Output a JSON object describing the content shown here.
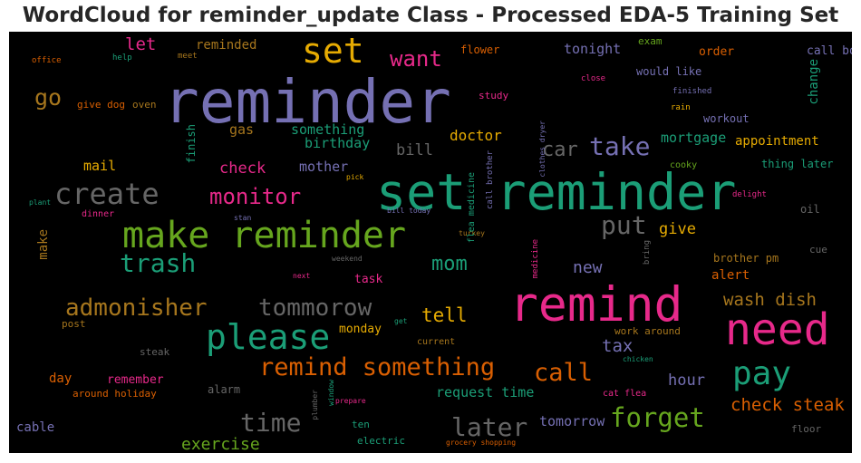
{
  "chart_data": {
    "type": "wordcloud",
    "title": "WordCloud for reminder_update Class - Processed EDA-5 Training Set",
    "words": [
      {
        "text": "reminder",
        "color": "#7570b3"
      },
      {
        "text": "set reminder",
        "color": "#1b9e77"
      },
      {
        "text": "remind",
        "color": "#e7298a"
      },
      {
        "text": "need",
        "color": "#e7298a"
      },
      {
        "text": "make reminder",
        "color": "#66a61e"
      },
      {
        "text": "set",
        "color": "#e6ab02"
      },
      {
        "text": "please",
        "color": "#1b9e77"
      },
      {
        "text": "create",
        "color": "#666666"
      },
      {
        "text": "pay",
        "color": "#1b9e77"
      },
      {
        "text": "remind something",
        "color": "#d95f02"
      },
      {
        "text": "forget",
        "color": "#66a61e"
      },
      {
        "text": "later",
        "color": "#666666"
      },
      {
        "text": "time",
        "color": "#666666"
      },
      {
        "text": "trash",
        "color": "#1b9e77"
      },
      {
        "text": "take",
        "color": "#7570b3"
      },
      {
        "text": "admonisher",
        "color": "#a6761d"
      },
      {
        "text": "tommorow",
        "color": "#666666"
      },
      {
        "text": "call",
        "color": "#d95f02"
      },
      {
        "text": "want",
        "color": "#e7298a"
      },
      {
        "text": "monitor",
        "color": "#e7298a"
      },
      {
        "text": "put",
        "color": "#666666"
      },
      {
        "text": "go",
        "color": "#a6761d"
      },
      {
        "text": "mom",
        "color": "#1b9e77"
      },
      {
        "text": "tell",
        "color": "#e6ab02"
      },
      {
        "text": "car",
        "color": "#666666"
      },
      {
        "text": "check steak",
        "color": "#d95f02"
      },
      {
        "text": "wash dish",
        "color": "#a6761d"
      },
      {
        "text": "let",
        "color": "#e7298a"
      },
      {
        "text": "check",
        "color": "#e7298a"
      },
      {
        "text": "exercise",
        "color": "#66a61e"
      },
      {
        "text": "request time",
        "color": "#1b9e77"
      },
      {
        "text": "tax",
        "color": "#7570b3"
      },
      {
        "text": "new",
        "color": "#7570b3"
      },
      {
        "text": "give",
        "color": "#e6ab02"
      },
      {
        "text": "mortgage",
        "color": "#1b9e77"
      },
      {
        "text": "hour",
        "color": "#7570b3"
      },
      {
        "text": "tomorrow",
        "color": "#7570b3"
      },
      {
        "text": "doctor",
        "color": "#e6ab02"
      },
      {
        "text": "bill",
        "color": "#666666"
      },
      {
        "text": "birthday",
        "color": "#1b9e77"
      },
      {
        "text": "something",
        "color": "#1b9e77"
      },
      {
        "text": "mother",
        "color": "#7570b3"
      },
      {
        "text": "gas",
        "color": "#a6761d"
      },
      {
        "text": "mail",
        "color": "#e6ab02"
      },
      {
        "text": "reminded",
        "color": "#a6761d"
      },
      {
        "text": "tonight",
        "color": "#7570b3"
      },
      {
        "text": "appointment",
        "color": "#e6ab02"
      },
      {
        "text": "change",
        "color": "#1b9e77"
      },
      {
        "text": "call bob",
        "color": "#7570b3"
      },
      {
        "text": "order",
        "color": "#d95f02"
      },
      {
        "text": "alert",
        "color": "#d95f02"
      },
      {
        "text": "day",
        "color": "#d95f02"
      },
      {
        "text": "make",
        "color": "#a6761d"
      },
      {
        "text": "remember",
        "color": "#e7298a"
      },
      {
        "text": "alarm",
        "color": "#666666"
      },
      {
        "text": "cable",
        "color": "#7570b3"
      },
      {
        "text": "monday",
        "color": "#e6ab02"
      },
      {
        "text": "task",
        "color": "#e7298a"
      },
      {
        "text": "brother pm",
        "color": "#a6761d"
      },
      {
        "text": "oil",
        "color": "#666666"
      },
      {
        "text": "thing later",
        "color": "#1b9e77"
      },
      {
        "text": "would like",
        "color": "#7570b3"
      },
      {
        "text": "workout",
        "color": "#7570b3"
      },
      {
        "text": "exam",
        "color": "#66a61e"
      },
      {
        "text": "flower",
        "color": "#d95f02"
      },
      {
        "text": "give dog",
        "color": "#d95f02"
      },
      {
        "text": "oven",
        "color": "#a6761d"
      },
      {
        "text": "finish",
        "color": "#1b9e77"
      },
      {
        "text": "work around",
        "color": "#a6761d"
      },
      {
        "text": "around holiday",
        "color": "#d95f02"
      },
      {
        "text": "steak",
        "color": "#666666"
      },
      {
        "text": "post",
        "color": "#a6761d"
      },
      {
        "text": "ten",
        "color": "#1b9e77"
      },
      {
        "text": "electric",
        "color": "#1b9e77"
      },
      {
        "text": "floor",
        "color": "#666666"
      },
      {
        "text": "cue",
        "color": "#666666"
      },
      {
        "text": "cat flea",
        "color": "#e7298a"
      },
      {
        "text": "study",
        "color": "#e7298a"
      },
      {
        "text": "cooky",
        "color": "#66a61e"
      },
      {
        "text": "delight",
        "color": "#e7298a"
      },
      {
        "text": "dinner",
        "color": "#e7298a"
      },
      {
        "text": "current",
        "color": "#a6761d"
      },
      {
        "text": "office",
        "color": "#d95f02"
      },
      {
        "text": "help",
        "color": "#1b9e77"
      },
      {
        "text": "meet",
        "color": "#a6761d"
      },
      {
        "text": "close",
        "color": "#e7298a"
      },
      {
        "text": "finished",
        "color": "#7570b3"
      },
      {
        "text": "rain",
        "color": "#e6ab02"
      },
      {
        "text": "plant",
        "color": "#1b9e77"
      },
      {
        "text": "stan",
        "color": "#7570b3"
      },
      {
        "text": "pick",
        "color": "#e6ab02"
      },
      {
        "text": "bill today",
        "color": "#7570b3"
      },
      {
        "text": "turkey",
        "color": "#a6761d"
      },
      {
        "text": "bring",
        "color": "#666666"
      },
      {
        "text": "weekend",
        "color": "#666666"
      },
      {
        "text": "next",
        "color": "#e7298a"
      },
      {
        "text": "get",
        "color": "#1b9e77"
      },
      {
        "text": "chicken",
        "color": "#1b9e77"
      },
      {
        "text": "prepare",
        "color": "#e7298a"
      },
      {
        "text": "plumber",
        "color": "#666666"
      },
      {
        "text": "window",
        "color": "#1b9e77"
      },
      {
        "text": "grocery shopping",
        "color": "#d95f02"
      },
      {
        "text": "medicine",
        "color": "#e7298a"
      },
      {
        "text": "flea medicine",
        "color": "#1b9e77"
      },
      {
        "text": "call brother",
        "color": "#7570b3"
      },
      {
        "text": "clothes dryer",
        "color": "#7570b3"
      }
    ]
  }
}
